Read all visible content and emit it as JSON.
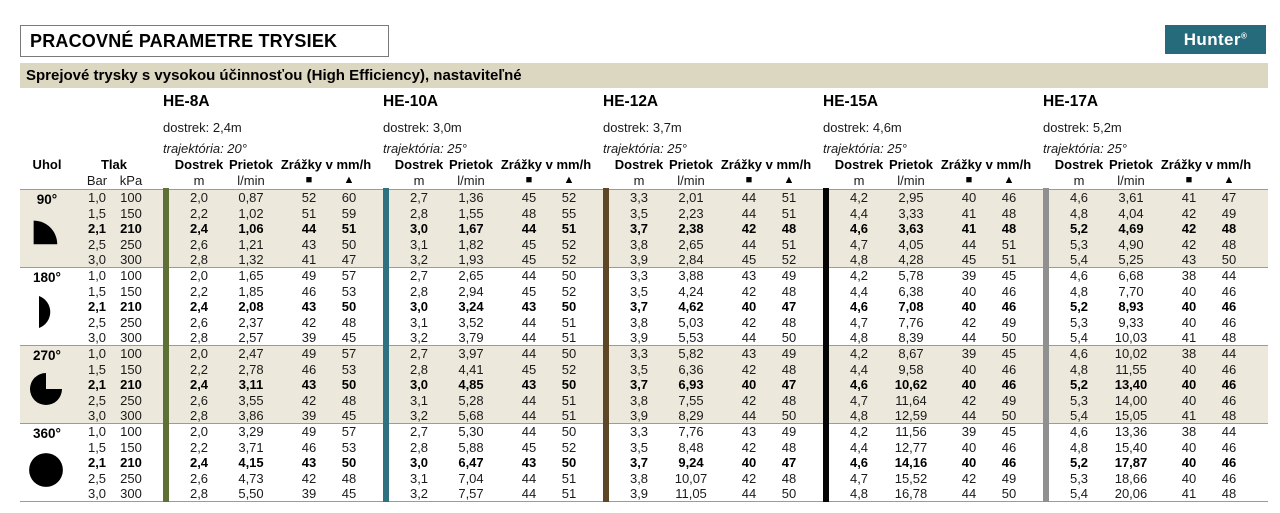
{
  "page": {
    "title": "PRACOVNÉ PARAMETRE TRYSIEK",
    "subtitle": "Sprejové trysky s vysokou účinnosťou (High Efficiency), nastaviteľné",
    "logo_text": "Hunter",
    "logo_reg": "®",
    "colors": {
      "logo_teal": "#256b7c",
      "subtitle_bg": "#dcd7c1"
    }
  },
  "table": {
    "colors": {
      "band": "#ece9dc",
      "line": "#9b9b9b"
    },
    "col_headers": {
      "uhol": "Uhol",
      "tlak": "Tlak",
      "bar": "Bar",
      "kpa": "kPa",
      "dostrek": "Dostrek",
      "dostrek_unit": "m",
      "prietok": "Prietok",
      "prietok_unit": "l/min",
      "zrazky": "Zrážky v mm/h",
      "square": "■",
      "triangle": "▲"
    },
    "nozzles": [
      {
        "name": "HE-8A",
        "dostrek": "dostrek: 2,4m",
        "trajektoria": "trajektória: 20°",
        "color": "#5f7036"
      },
      {
        "name": "HE-10A",
        "dostrek": "dostrek: 3,0m",
        "trajektoria": "trajektória: 25°",
        "color": "#2e7282"
      },
      {
        "name": "HE-12A",
        "dostrek": "dostrek: 3,7m",
        "trajektoria": "trajektória: 25°",
        "color": "#5e4726"
      },
      {
        "name": "HE-15A",
        "dostrek": "dostrek: 4,6m",
        "trajektoria": "trajektória: 25°",
        "color": "#050505"
      },
      {
        "name": "HE-17A",
        "dostrek": "dostrek: 5,2m",
        "trajektoria": "trajektória: 25°",
        "color": "#909090"
      }
    ],
    "groups": [
      {
        "angle": "90°",
        "icon": "quarter-circle-icon",
        "shade": true,
        "rows": [
          {
            "bar": "1,0",
            "kpa": "100",
            "bold": false,
            "values": [
              [
                "2,0",
                "0,87",
                "52",
                "60"
              ],
              [
                "2,7",
                "1,36",
                "45",
                "52"
              ],
              [
                "3,3",
                "2,01",
                "44",
                "51"
              ],
              [
                "4,2",
                "2,95",
                "40",
                "46"
              ],
              [
                "4,6",
                "3,61",
                "41",
                "47"
              ]
            ]
          },
          {
            "bar": "1,5",
            "kpa": "150",
            "bold": false,
            "values": [
              [
                "2,2",
                "1,02",
                "51",
                "59"
              ],
              [
                "2,8",
                "1,55",
                "48",
                "55"
              ],
              [
                "3,5",
                "2,23",
                "44",
                "51"
              ],
              [
                "4,4",
                "3,33",
                "41",
                "48"
              ],
              [
                "4,8",
                "4,04",
                "42",
                "49"
              ]
            ]
          },
          {
            "bar": "2,1",
            "kpa": "210",
            "bold": true,
            "values": [
              [
                "2,4",
                "1,06",
                "44",
                "51"
              ],
              [
                "3,0",
                "1,67",
                "44",
                "51"
              ],
              [
                "3,7",
                "2,38",
                "42",
                "48"
              ],
              [
                "4,6",
                "3,63",
                "41",
                "48"
              ],
              [
                "5,2",
                "4,69",
                "42",
                "48"
              ]
            ]
          },
          {
            "bar": "2,5",
            "kpa": "250",
            "bold": false,
            "values": [
              [
                "2,6",
                "1,21",
                "43",
                "50"
              ],
              [
                "3,1",
                "1,82",
                "45",
                "52"
              ],
              [
                "3,8",
                "2,65",
                "44",
                "51"
              ],
              [
                "4,7",
                "4,05",
                "44",
                "51"
              ],
              [
                "5,3",
                "4,90",
                "42",
                "48"
              ]
            ]
          },
          {
            "bar": "3,0",
            "kpa": "300",
            "bold": false,
            "values": [
              [
                "2,8",
                "1,32",
                "41",
                "47"
              ],
              [
                "3,2",
                "1,93",
                "45",
                "52"
              ],
              [
                "3,9",
                "2,84",
                "45",
                "52"
              ],
              [
                "4,8",
                "4,28",
                "45",
                "51"
              ],
              [
                "5,4",
                "5,25",
                "43",
                "50"
              ]
            ]
          }
        ]
      },
      {
        "angle": "180°",
        "icon": "half-circle-icon",
        "shade": false,
        "rows": [
          {
            "bar": "1,0",
            "kpa": "100",
            "bold": false,
            "values": [
              [
                "2,0",
                "1,65",
                "49",
                "57"
              ],
              [
                "2,7",
                "2,65",
                "44",
                "50"
              ],
              [
                "3,3",
                "3,88",
                "43",
                "49"
              ],
              [
                "4,2",
                "5,78",
                "39",
                "45"
              ],
              [
                "4,6",
                "6,68",
                "38",
                "44"
              ]
            ]
          },
          {
            "bar": "1,5",
            "kpa": "150",
            "bold": false,
            "values": [
              [
                "2,2",
                "1,85",
                "46",
                "53"
              ],
              [
                "2,8",
                "2,94",
                "45",
                "52"
              ],
              [
                "3,5",
                "4,24",
                "42",
                "48"
              ],
              [
                "4,4",
                "6,38",
                "40",
                "46"
              ],
              [
                "4,8",
                "7,70",
                "40",
                "46"
              ]
            ]
          },
          {
            "bar": "2,1",
            "kpa": "210",
            "bold": true,
            "values": [
              [
                "2,4",
                "2,08",
                "43",
                "50"
              ],
              [
                "3,0",
                "3,24",
                "43",
                "50"
              ],
              [
                "3,7",
                "4,62",
                "40",
                "47"
              ],
              [
                "4,6",
                "7,08",
                "40",
                "46"
              ],
              [
                "5,2",
                "8,93",
                "40",
                "46"
              ]
            ]
          },
          {
            "bar": "2,5",
            "kpa": "250",
            "bold": false,
            "values": [
              [
                "2,6",
                "2,37",
                "42",
                "48"
              ],
              [
                "3,1",
                "3,52",
                "44",
                "51"
              ],
              [
                "3,8",
                "5,03",
                "42",
                "48"
              ],
              [
                "4,7",
                "7,76",
                "42",
                "49"
              ],
              [
                "5,3",
                "9,33",
                "40",
                "46"
              ]
            ]
          },
          {
            "bar": "3,0",
            "kpa": "300",
            "bold": false,
            "values": [
              [
                "2,8",
                "2,57",
                "39",
                "45"
              ],
              [
                "3,2",
                "3,79",
                "44",
                "51"
              ],
              [
                "3,9",
                "5,53",
                "44",
                "50"
              ],
              [
                "4,8",
                "8,39",
                "44",
                "50"
              ],
              [
                "5,4",
                "10,03",
                "41",
                "48"
              ]
            ]
          }
        ]
      },
      {
        "angle": "270°",
        "icon": "three-quarter-circle-icon",
        "shade": true,
        "rows": [
          {
            "bar": "1,0",
            "kpa": "100",
            "bold": false,
            "values": [
              [
                "2,0",
                "2,47",
                "49",
                "57"
              ],
              [
                "2,7",
                "3,97",
                "44",
                "50"
              ],
              [
                "3,3",
                "5,82",
                "43",
                "49"
              ],
              [
                "4,2",
                "8,67",
                "39",
                "45"
              ],
              [
                "4,6",
                "10,02",
                "38",
                "44"
              ]
            ]
          },
          {
            "bar": "1,5",
            "kpa": "150",
            "bold": false,
            "values": [
              [
                "2,2",
                "2,78",
                "46",
                "53"
              ],
              [
                "2,8",
                "4,41",
                "45",
                "52"
              ],
              [
                "3,5",
                "6,36",
                "42",
                "48"
              ],
              [
                "4,4",
                "9,58",
                "40",
                "46"
              ],
              [
                "4,8",
                "11,55",
                "40",
                "46"
              ]
            ]
          },
          {
            "bar": "2,1",
            "kpa": "210",
            "bold": true,
            "values": [
              [
                "2,4",
                "3,11",
                "43",
                "50"
              ],
              [
                "3,0",
                "4,85",
                "43",
                "50"
              ],
              [
                "3,7",
                "6,93",
                "40",
                "47"
              ],
              [
                "4,6",
                "10,62",
                "40",
                "46"
              ],
              [
                "5,2",
                "13,40",
                "40",
                "46"
              ]
            ]
          },
          {
            "bar": "2,5",
            "kpa": "250",
            "bold": false,
            "values": [
              [
                "2,6",
                "3,55",
                "42",
                "48"
              ],
              [
                "3,1",
                "5,28",
                "44",
                "51"
              ],
              [
                "3,8",
                "7,55",
                "42",
                "48"
              ],
              [
                "4,7",
                "11,64",
                "42",
                "49"
              ],
              [
                "5,3",
                "14,00",
                "40",
                "46"
              ]
            ]
          },
          {
            "bar": "3,0",
            "kpa": "300",
            "bold": false,
            "values": [
              [
                "2,8",
                "3,86",
                "39",
                "45"
              ],
              [
                "3,2",
                "5,68",
                "44",
                "51"
              ],
              [
                "3,9",
                "8,29",
                "44",
                "50"
              ],
              [
                "4,8",
                "12,59",
                "44",
                "50"
              ],
              [
                "5,4",
                "15,05",
                "41",
                "48"
              ]
            ]
          }
        ]
      },
      {
        "angle": "360°",
        "icon": "full-circle-icon",
        "shade": false,
        "rows": [
          {
            "bar": "1,0",
            "kpa": "100",
            "bold": false,
            "values": [
              [
                "2,0",
                "3,29",
                "49",
                "57"
              ],
              [
                "2,7",
                "5,30",
                "44",
                "50"
              ],
              [
                "3,3",
                "7,76",
                "43",
                "49"
              ],
              [
                "4,2",
                "11,56",
                "39",
                "45"
              ],
              [
                "4,6",
                "13,36",
                "38",
                "44"
              ]
            ]
          },
          {
            "bar": "1,5",
            "kpa": "150",
            "bold": false,
            "values": [
              [
                "2,2",
                "3,71",
                "46",
                "53"
              ],
              [
                "2,8",
                "5,88",
                "45",
                "52"
              ],
              [
                "3,5",
                "8,48",
                "42",
                "48"
              ],
              [
                "4,4",
                "12,77",
                "40",
                "46"
              ],
              [
                "4,8",
                "15,40",
                "40",
                "46"
              ]
            ]
          },
          {
            "bar": "2,1",
            "kpa": "210",
            "bold": true,
            "values": [
              [
                "2,4",
                "4,15",
                "43",
                "50"
              ],
              [
                "3,0",
                "6,47",
                "43",
                "50"
              ],
              [
                "3,7",
                "9,24",
                "40",
                "47"
              ],
              [
                "4,6",
                "14,16",
                "40",
                "46"
              ],
              [
                "5,2",
                "17,87",
                "40",
                "46"
              ]
            ]
          },
          {
            "bar": "2,5",
            "kpa": "250",
            "bold": false,
            "values": [
              [
                "2,6",
                "4,73",
                "42",
                "48"
              ],
              [
                "3,1",
                "7,04",
                "44",
                "51"
              ],
              [
                "3,8",
                "10,07",
                "42",
                "48"
              ],
              [
                "4,7",
                "15,52",
                "42",
                "49"
              ],
              [
                "5,3",
                "18,66",
                "40",
                "46"
              ]
            ]
          },
          {
            "bar": "3,0",
            "kpa": "300",
            "bold": false,
            "values": [
              [
                "2,8",
                "5,50",
                "39",
                "45"
              ],
              [
                "3,2",
                "7,57",
                "44",
                "51"
              ],
              [
                "3,9",
                "11,05",
                "44",
                "50"
              ],
              [
                "4,8",
                "16,78",
                "44",
                "50"
              ],
              [
                "5,4",
                "20,06",
                "41",
                "48"
              ]
            ]
          }
        ]
      }
    ]
  }
}
